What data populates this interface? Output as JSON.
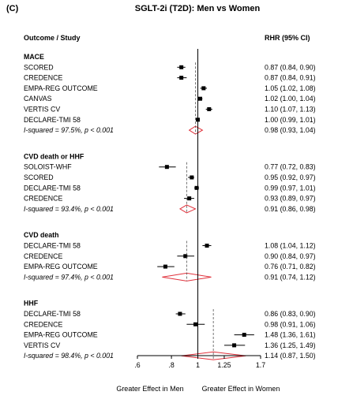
{
  "panel_label": "(C)",
  "chart_data": {
    "type": "forest",
    "title": "SGLT-2i (T2D): Men vs Women",
    "header_left": "Outcome / Study",
    "header_right": "RHR (95% CI)",
    "xscale": "log",
    "xlim": [
      0.6,
      1.7
    ],
    "reference_line": 1,
    "ticks": [
      0.6,
      0.8,
      1,
      1.25,
      1.7
    ],
    "tick_labels": [
      ".6",
      ".8",
      "1",
      "1.25",
      "1.7"
    ],
    "xlabel_left": "Greater Effect in Men",
    "xlabel_right": "Greater Effect in Women",
    "groups": [
      {
        "name": "MACE",
        "studies": [
          {
            "label": "SCORED",
            "est": 0.87,
            "lo": 0.84,
            "hi": 0.9,
            "text": "0.87 (0.84, 0.90)"
          },
          {
            "label": "CREDENCE",
            "est": 0.87,
            "lo": 0.84,
            "hi": 0.91,
            "text": "0.87 (0.84, 0.91)"
          },
          {
            "label": "EMPA-REG OUTCOME",
            "est": 1.05,
            "lo": 1.02,
            "hi": 1.08,
            "text": "1.05 (1.02, 1.08)"
          },
          {
            "label": "CANVAS",
            "est": 1.02,
            "lo": 1.0,
            "hi": 1.04,
            "text": "1.02 (1.00, 1.04)"
          },
          {
            "label": "VERTIS CV",
            "est": 1.1,
            "lo": 1.07,
            "hi": 1.13,
            "text": "1.10 (1.07, 1.13)"
          },
          {
            "label": "DECLARE-TMI 58",
            "est": 1.0,
            "lo": 0.99,
            "hi": 1.01,
            "text": "1.00 (0.99, 1.01)"
          }
        ],
        "pooled": {
          "label": "I-squared = 97.5%, p < 0.001",
          "est": 0.98,
          "lo": 0.93,
          "hi": 1.04,
          "text": "0.98 (0.93, 1.04)"
        }
      },
      {
        "name": "CVD death or HHF",
        "studies": [
          {
            "label": "SOLOIST-WHF",
            "est": 0.77,
            "lo": 0.72,
            "hi": 0.83,
            "text": "0.77 (0.72, 0.83)"
          },
          {
            "label": "SCORED",
            "est": 0.95,
            "lo": 0.92,
            "hi": 0.97,
            "text": "0.95 (0.92, 0.97)"
          },
          {
            "label": "DECLARE-TMI 58",
            "est": 0.99,
            "lo": 0.97,
            "hi": 1.01,
            "text": "0.99 (0.97, 1.01)"
          },
          {
            "label": "CREDENCE",
            "est": 0.93,
            "lo": 0.89,
            "hi": 0.97,
            "text": "0.93 (0.89, 0.97)"
          }
        ],
        "pooled": {
          "label": "I-squared = 93.4%, p < 0.001",
          "est": 0.91,
          "lo": 0.86,
          "hi": 0.98,
          "text": "0.91 (0.86, 0.98)"
        }
      },
      {
        "name": "CVD death",
        "studies": [
          {
            "label": "DECLARE-TMI 58",
            "est": 1.08,
            "lo": 1.04,
            "hi": 1.12,
            "text": "1.08 (1.04, 1.12)"
          },
          {
            "label": "CREDENCE",
            "est": 0.9,
            "lo": 0.84,
            "hi": 0.97,
            "text": "0.90 (0.84, 0.97)"
          },
          {
            "label": "EMPA-REG OUTCOME",
            "est": 0.76,
            "lo": 0.71,
            "hi": 0.82,
            "text": "0.76 (0.71, 0.82)"
          }
        ],
        "pooled": {
          "label": "I-squared = 97.4%, p < 0.001",
          "est": 0.91,
          "lo": 0.74,
          "hi": 1.12,
          "text": "0.91 (0.74, 1.12)"
        }
      },
      {
        "name": "HHF",
        "studies": [
          {
            "label": "DECLARE-TMI 58",
            "est": 0.86,
            "lo": 0.83,
            "hi": 0.9,
            "text": "0.86 (0.83, 0.90)"
          },
          {
            "label": "CREDENCE",
            "est": 0.98,
            "lo": 0.91,
            "hi": 1.06,
            "text": "0.98 (0.91, 1.06)"
          },
          {
            "label": "EMPA-REG OUTCOME",
            "est": 1.48,
            "lo": 1.36,
            "hi": 1.61,
            "text": "1.48 (1.36, 1.61)"
          },
          {
            "label": "VERTIS CV",
            "est": 1.36,
            "lo": 1.25,
            "hi": 1.49,
            "text": "1.36 (1.25, 1.49)"
          }
        ],
        "pooled": {
          "label": "I-squared = 98.4%, p < 0.001",
          "est": 1.14,
          "lo": 0.87,
          "hi": 1.5,
          "text": "1.14 (0.87, 1.50)"
        }
      }
    ],
    "colors": {
      "pooled_diamond": "#e0303a",
      "marks": "#000000"
    }
  }
}
